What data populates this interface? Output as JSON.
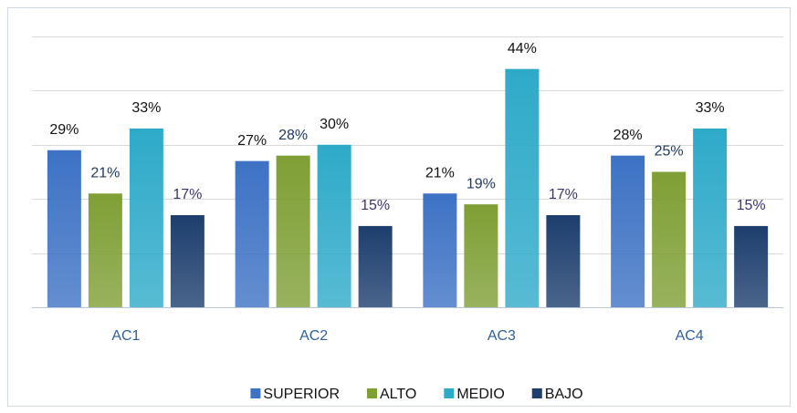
{
  "chart_data": {
    "type": "bar",
    "categories": [
      "AC1",
      "AC2",
      "AC3",
      "AC4"
    ],
    "series": [
      {
        "name": "SUPERIOR",
        "color": "#3d72c4",
        "label_color": "#111111",
        "values": [
          29,
          27,
          21,
          28
        ],
        "value_labels": [
          "29%",
          "27%",
          "21%",
          "28%"
        ]
      },
      {
        "name": "ALTO",
        "color": "#7f9f35",
        "label_color": "#1f3864",
        "values": [
          21,
          28,
          19,
          25
        ],
        "value_labels": [
          "21%",
          "28%",
          "19%",
          "25%"
        ]
      },
      {
        "name": "MEDIO",
        "color": "#2eaac9",
        "label_color": "#111111",
        "values": [
          33,
          30,
          44,
          33
        ],
        "value_labels": [
          "33%",
          "30%",
          "44%",
          "33%"
        ]
      },
      {
        "name": "BAJO",
        "color": "#1d3e6e",
        "label_color": "#3b3470",
        "values": [
          17,
          15,
          17,
          15
        ],
        "value_labels": [
          "17%",
          "15%",
          "17%",
          "15%"
        ]
      }
    ],
    "ylim": [
      0,
      50
    ],
    "yticks": [
      0,
      10,
      20,
      30,
      40,
      50
    ],
    "grid": true,
    "legend": "bottom"
  }
}
